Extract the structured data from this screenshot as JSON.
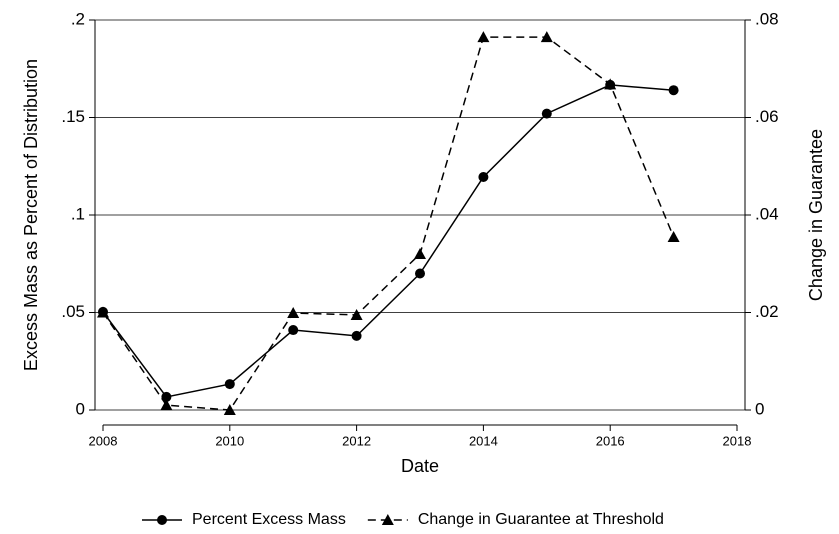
{
  "chart_data": {
    "type": "line",
    "xlabel": "Date",
    "ylabel": "Excess Mass as Percent of Distribution",
    "y2label": "Change in Guarantee",
    "x": [
      2008,
      2009,
      2010,
      2011,
      2012,
      2013,
      2014,
      2015,
      2016,
      2017
    ],
    "xlim": [
      2008,
      2018
    ],
    "xticks": [
      2008,
      2010,
      2012,
      2014,
      2016,
      2018
    ],
    "ylim": [
      0,
      0.2
    ],
    "yticks": [
      0,
      {
        "value": 0.05,
        "label": ".05"
      },
      {
        "value": 0.1,
        "label": ".1"
      },
      {
        "value": 0.15,
        "label": ".15"
      },
      {
        "value": 0.2,
        "label": ".2"
      }
    ],
    "y2lim": [
      0,
      0.08
    ],
    "y2ticks": [
      0,
      {
        "value": 0.02,
        "label": ".02"
      },
      {
        "value": 0.04,
        "label": ".04"
      },
      {
        "value": 0.06,
        "label": ".06"
      },
      {
        "value": 0.08,
        "label": ".08"
      }
    ],
    "grid": true,
    "legend": "bottom",
    "series": [
      {
        "name": "Percent Excess Mass",
        "color": "#000000",
        "marker": "circle",
        "linestyle": "solid",
        "values": [
          0.0503,
          0.0067,
          0.0133,
          0.041,
          0.038,
          0.07,
          0.1195,
          0.152,
          0.1667,
          0.164
        ]
      },
      {
        "name": "Change in Guarantee at Threshold",
        "color": "#000000",
        "marker": "triangle",
        "linestyle": "dashed",
        "axis": "y2",
        "values": [
          0.02,
          0.001,
          0,
          0.0199,
          0.0195,
          0.032,
          0.0765,
          0.0765,
          0.0668,
          0.0355
        ]
      }
    ]
  }
}
